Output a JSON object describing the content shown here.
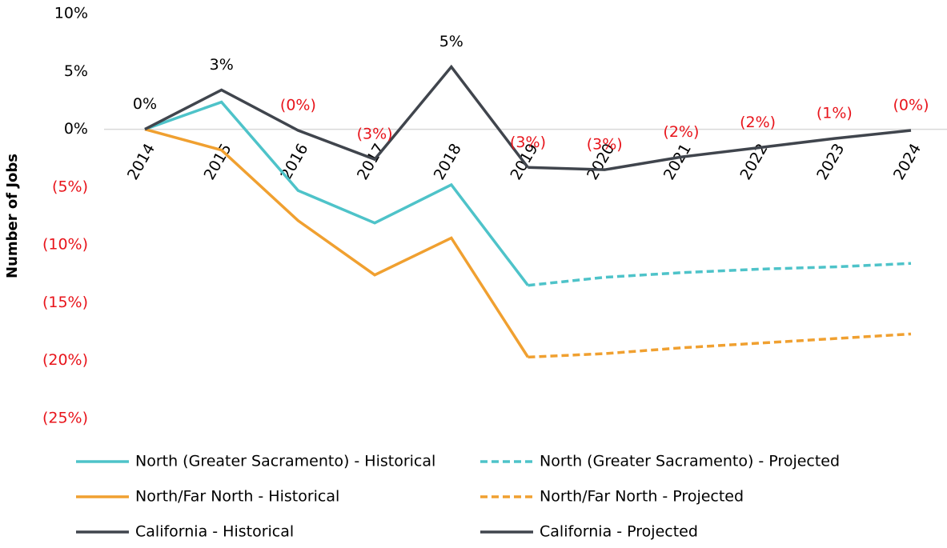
{
  "chart_data": {
    "type": "line",
    "y_label": "Number of Jobs",
    "categories": [
      "2014",
      "2015",
      "2016",
      "2017",
      "2018",
      "2019",
      "2020",
      "2021",
      "2022",
      "2023",
      "2024"
    ],
    "series": [
      {
        "name": "North (Greater Sacramento) - Historical",
        "color": "#4ec3c9",
        "dashed": false,
        "values": [
          0,
          2.35,
          -5.3,
          -8.1,
          -4.8,
          -13.5,
          null,
          null,
          null,
          null,
          null
        ]
      },
      {
        "name": "North (Greater Sacramento) - Projected",
        "color": "#4ec3c9",
        "dashed": true,
        "values": [
          null,
          null,
          null,
          null,
          null,
          -13.5,
          -12.8,
          -12.4,
          -12.1,
          -11.9,
          -11.6
        ]
      },
      {
        "name": "North/Far North - Historical",
        "color": "#f0a030",
        "dashed": false,
        "values": [
          0,
          -1.8,
          -7.9,
          -12.6,
          -9.4,
          -19.7,
          null,
          null,
          null,
          null,
          null
        ]
      },
      {
        "name": "North/Far North - Projected",
        "color": "#f0a030",
        "dashed": true,
        "values": [
          null,
          null,
          null,
          null,
          null,
          -19.7,
          -19.4,
          -18.9,
          -18.5,
          -18.1,
          -17.7
        ]
      },
      {
        "name": "California - Historical",
        "color": "#40454d",
        "dashed": false,
        "values": [
          0,
          3.4,
          -0.1,
          -2.6,
          5.4,
          -3.3,
          null,
          null,
          null,
          null,
          null
        ],
        "value_labels": [
          "0%",
          "3%",
          "(0%)",
          "(3%)",
          "5%",
          null,
          null,
          null,
          null,
          null,
          null
        ]
      },
      {
        "name": "California - Projected",
        "color": "#40454d",
        "dashed": false,
        "values": [
          null,
          null,
          null,
          null,
          null,
          -3.3,
          -3.5,
          -2.4,
          -1.6,
          -0.8,
          -0.1
        ],
        "value_labels": [
          null,
          null,
          null,
          null,
          null,
          "(3%)",
          "(3%)",
          "(2%)",
          "(2%)",
          "(1%)",
          "(0%)"
        ]
      }
    ],
    "ylim": [
      -25,
      10
    ],
    "yticks": [
      {
        "value": -25,
        "label": "(25%)"
      },
      {
        "value": -20,
        "label": "(20%)"
      },
      {
        "value": -15,
        "label": "(15%)"
      },
      {
        "value": -10,
        "label": "(10%)"
      },
      {
        "value": -5,
        "label": "(5%)"
      },
      {
        "value": 0,
        "label": "0%"
      },
      {
        "value": 5,
        "label": "5%"
      },
      {
        "value": 10,
        "label": "10%"
      }
    ],
    "negative_color": "#e8141b",
    "legend": "bottom"
  }
}
